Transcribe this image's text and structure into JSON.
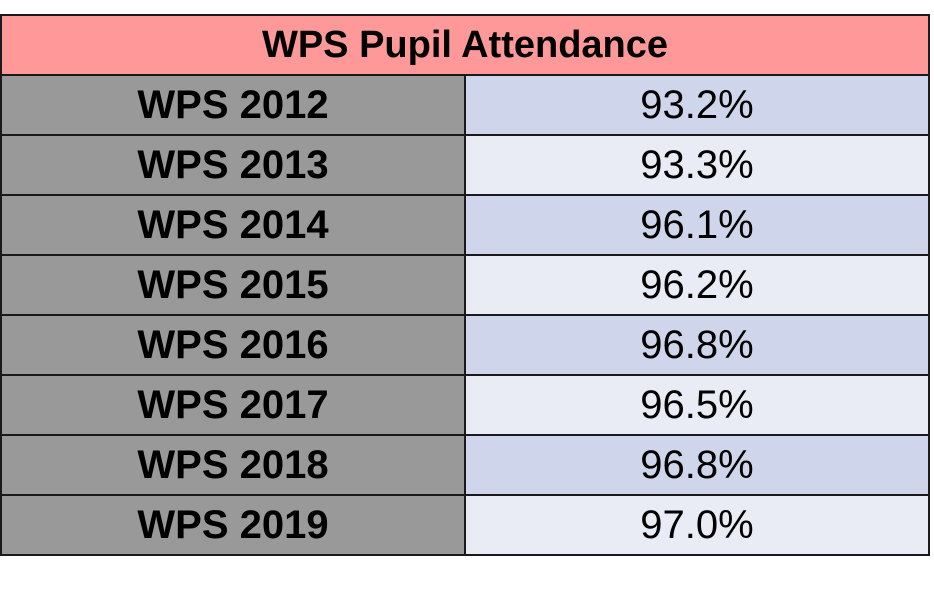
{
  "chart_data": {
    "type": "table",
    "title": "WPS Pupil Attendance",
    "rows": [
      {
        "label": "WPS 2012",
        "value": "93.2%"
      },
      {
        "label": "WPS 2013",
        "value": "93.3%"
      },
      {
        "label": "WPS 2014",
        "value": "96.1%"
      },
      {
        "label": "WPS 2015",
        "value": "96.2%"
      },
      {
        "label": "WPS 2016",
        "value": "96.8%"
      },
      {
        "label": "WPS 2017",
        "value": "96.5%"
      },
      {
        "label": "WPS 2018",
        "value": "96.8%"
      },
      {
        "label": "WPS 2019",
        "value": "97.0%"
      }
    ]
  },
  "colors": {
    "header_fill": "#ff9999",
    "label_fill": "#999999",
    "value_fill_dark": "#cfd5ea",
    "value_fill_light": "#e9ecf5",
    "border": "#1a1a1a"
  }
}
